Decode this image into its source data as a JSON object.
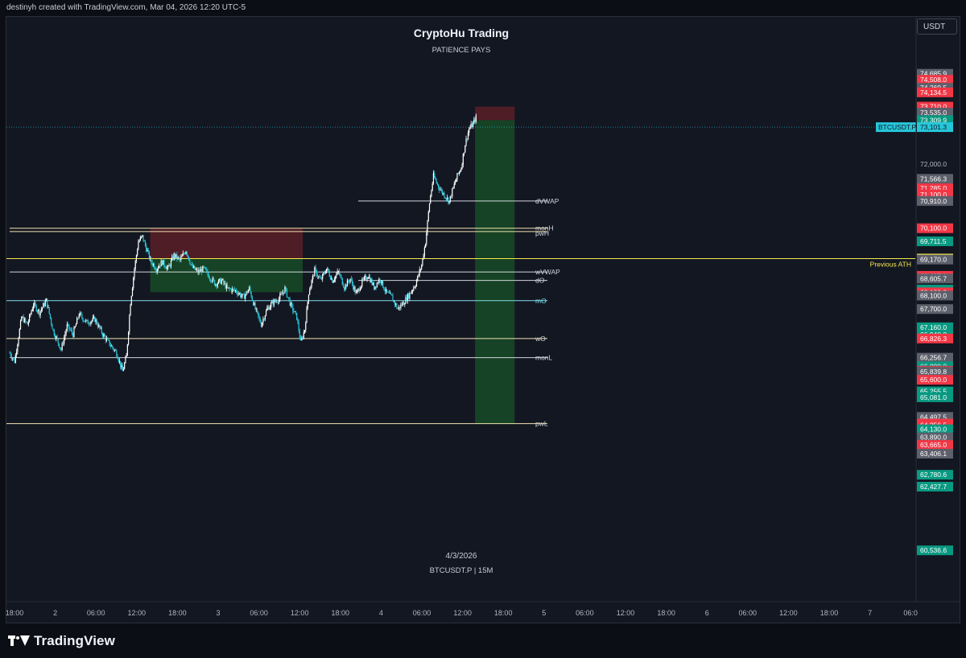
{
  "header": {
    "attribution": "destinyh created with TradingView.com, Mar 04, 2026 12:20 UTC-5"
  },
  "currency_button": "USDT",
  "footer": {
    "brand": "TradingView",
    "icon": "tradingview-logo-icon"
  },
  "chart_data": {
    "type": "candlestick",
    "symbol": "BTCUSDT.P",
    "interval": "15M",
    "title": "CryptoHu Trading",
    "subtitle": "PATIENCE PAYS",
    "watermark_date": "4/3/2026",
    "watermark_symbol": "BTCUSDT.P | 15M",
    "ylim": [
      59800,
      75300
    ],
    "x_ticks": [
      "18:00",
      "2",
      "06:00",
      "12:00",
      "18:00",
      "3",
      "06:00",
      "12:00",
      "18:00",
      "4",
      "06:00",
      "12:00",
      "18:00",
      "5",
      "06:00",
      "12:00",
      "18:00",
      "6",
      "06:00",
      "12:00",
      "18:00",
      "7",
      "06:0"
    ],
    "up_color": "#ffffff",
    "down_color": "#26c6da",
    "price_path": [
      {
        "t": 0,
        "p": 66400
      },
      {
        "t": 5,
        "p": 66150
      },
      {
        "t": 12,
        "p": 67450
      },
      {
        "t": 18,
        "p": 67250
      },
      {
        "t": 24,
        "p": 67850
      },
      {
        "t": 30,
        "p": 67600
      },
      {
        "t": 37,
        "p": 67950
      },
      {
        "t": 44,
        "p": 67050
      },
      {
        "t": 52,
        "p": 66500
      },
      {
        "t": 58,
        "p": 67200
      },
      {
        "t": 64,
        "p": 66950
      },
      {
        "t": 70,
        "p": 67550
      },
      {
        "t": 78,
        "p": 67300
      },
      {
        "t": 86,
        "p": 67400
      },
      {
        "t": 94,
        "p": 66950
      },
      {
        "t": 100,
        "p": 66700
      },
      {
        "t": 108,
        "p": 66400
      },
      {
        "t": 114,
        "p": 65850
      },
      {
        "t": 118,
        "p": 66300
      },
      {
        "t": 122,
        "p": 67900
      },
      {
        "t": 126,
        "p": 68900
      },
      {
        "t": 130,
        "p": 69700
      },
      {
        "t": 134,
        "p": 69850
      },
      {
        "t": 138,
        "p": 69500
      },
      {
        "t": 142,
        "p": 69150
      },
      {
        "t": 148,
        "p": 68900
      },
      {
        "t": 154,
        "p": 69100
      },
      {
        "t": 160,
        "p": 68900
      },
      {
        "t": 166,
        "p": 69300
      },
      {
        "t": 172,
        "p": 69150
      },
      {
        "t": 178,
        "p": 69450
      },
      {
        "t": 184,
        "p": 68950
      },
      {
        "t": 190,
        "p": 68800
      },
      {
        "t": 196,
        "p": 68900
      },
      {
        "t": 202,
        "p": 68650
      },
      {
        "t": 208,
        "p": 68450
      },
      {
        "t": 214,
        "p": 68550
      },
      {
        "t": 220,
        "p": 68300
      },
      {
        "t": 228,
        "p": 68250
      },
      {
        "t": 236,
        "p": 68050
      },
      {
        "t": 242,
        "p": 68300
      },
      {
        "t": 248,
        "p": 67700
      },
      {
        "t": 254,
        "p": 67250
      },
      {
        "t": 260,
        "p": 67700
      },
      {
        "t": 266,
        "p": 67900
      },
      {
        "t": 272,
        "p": 68000
      },
      {
        "t": 278,
        "p": 68300
      },
      {
        "t": 284,
        "p": 67800
      },
      {
        "t": 290,
        "p": 67450
      },
      {
        "t": 294,
        "p": 66700
      },
      {
        "t": 298,
        "p": 67100
      },
      {
        "t": 302,
        "p": 68200
      },
      {
        "t": 308,
        "p": 68850
      },
      {
        "t": 314,
        "p": 68550
      },
      {
        "t": 320,
        "p": 68900
      },
      {
        "t": 326,
        "p": 68550
      },
      {
        "t": 332,
        "p": 68800
      },
      {
        "t": 338,
        "p": 68350
      },
      {
        "t": 344,
        "p": 68600
      },
      {
        "t": 350,
        "p": 68150
      },
      {
        "t": 356,
        "p": 68500
      },
      {
        "t": 362,
        "p": 68700
      },
      {
        "t": 368,
        "p": 68350
      },
      {
        "t": 374,
        "p": 68600
      },
      {
        "t": 380,
        "p": 68200
      },
      {
        "t": 386,
        "p": 68050
      },
      {
        "t": 392,
        "p": 67700
      },
      {
        "t": 398,
        "p": 67900
      },
      {
        "t": 404,
        "p": 68150
      },
      {
        "t": 410,
        "p": 68450
      },
      {
        "t": 416,
        "p": 69000
      },
      {
        "t": 420,
        "p": 69700
      },
      {
        "t": 424,
        "p": 70850
      },
      {
        "t": 428,
        "p": 71650
      },
      {
        "t": 432,
        "p": 71400
      },
      {
        "t": 436,
        "p": 71200
      },
      {
        "t": 440,
        "p": 71050
      },
      {
        "t": 444,
        "p": 70900
      },
      {
        "t": 448,
        "p": 71300
      },
      {
        "t": 452,
        "p": 71650
      },
      {
        "t": 456,
        "p": 71900
      },
      {
        "t": 460,
        "p": 72600
      },
      {
        "t": 464,
        "p": 73050
      },
      {
        "t": 468,
        "p": 73200
      },
      {
        "t": 472,
        "p": 73450
      }
    ],
    "levels": [
      {
        "label": "dVWAP",
        "price": 70910,
        "start": 352,
        "color": "#d1d4dc"
      },
      {
        "label": "monH",
        "price": 70100,
        "start": 0,
        "color": "#f3e3b0"
      },
      {
        "label": "pwH",
        "price": 70000,
        "start": 0,
        "color": "#f3e3b0"
      },
      {
        "label": "",
        "price": 69198.7,
        "start": -40,
        "color": "#f7e84b"
      },
      {
        "label": "wVWAP",
        "price": 68800,
        "start": 0,
        "color": "#d1d4dc"
      },
      {
        "label": "dO",
        "price": 68550,
        "start": 352,
        "color": "#d1d4dc"
      },
      {
        "label": "mO",
        "price": 67950,
        "start": -40,
        "color": "#80deea"
      },
      {
        "label": "wO",
        "price": 66826,
        "start": -40,
        "color": "#f3e3b0"
      },
      {
        "label": "monL",
        "price": 66256.7,
        "start": 0,
        "color": "#d1d4dc"
      },
      {
        "label": "pwL",
        "price": 64300,
        "start": -40,
        "color": "#f3e3b0"
      }
    ],
    "prev_ath_label": "Previous ATH",
    "prev_ath_price": 69198.7,
    "positions": [
      {
        "t1": 142,
        "t2": 296,
        "entry": 69198.7,
        "stop": 70100,
        "target": 68200
      },
      {
        "t1": 470,
        "t2": 510,
        "entry": 73309.9,
        "stop": 73710,
        "target": 64300
      }
    ],
    "current_price": 73101.3,
    "current_label": "BTCUSDT.P",
    "axis_labels": [
      {
        "price": 74685.9,
        "color": "#5d606b"
      },
      {
        "price": 74508.0,
        "color": "#f23645"
      },
      {
        "price": 74269.5,
        "color": "#5d606b"
      },
      {
        "price": 74134.5,
        "color": "#f23645"
      },
      {
        "price": 73710.0,
        "color": "#f23645"
      },
      {
        "price": 73535.0,
        "color": "#5d606b"
      },
      {
        "price": 73309.9,
        "color": "#089981"
      },
      {
        "price": 72000.0,
        "color": "plain"
      },
      {
        "price": 71566.3,
        "color": "#5d606b"
      },
      {
        "price": 71285.0,
        "color": "#f23645"
      },
      {
        "price": 71100.0,
        "color": "#f23645"
      },
      {
        "price": 70910.0,
        "color": "#5d606b"
      },
      {
        "price": 70100.0,
        "color": "#f23645"
      },
      {
        "price": 69711.5,
        "color": "#089981"
      },
      {
        "price": 69198.7,
        "color": "#f7e84b"
      },
      {
        "price": 69170.0,
        "color": "#5d606b"
      },
      {
        "price": 68687.0,
        "color": "#f23645"
      },
      {
        "price": 68605.7,
        "color": "#5d606b"
      },
      {
        "price": 68280.0,
        "color": "#089981"
      },
      {
        "price": 68272.0,
        "color": "#089981"
      },
      {
        "price": 68196.9,
        "color": "#f23645"
      },
      {
        "price": 68189.0,
        "color": "#f23645"
      },
      {
        "price": 68100.0,
        "color": "#5d606b"
      },
      {
        "price": 67700.0,
        "color": "#5d606b"
      },
      {
        "price": 67160.0,
        "color": "#089981"
      },
      {
        "price": 66940.8,
        "color": "#089981"
      },
      {
        "price": 66826.3,
        "color": "#f23645"
      },
      {
        "price": 66256.7,
        "color": "#5d606b"
      },
      {
        "price": 66000.0,
        "color": "#089981"
      },
      {
        "price": 65876.0,
        "color": "#5d606b"
      },
      {
        "price": 65861.7,
        "color": "#f23645"
      },
      {
        "price": 65839.8,
        "color": "#5d606b"
      },
      {
        "price": 65600.0,
        "color": "#f23645"
      },
      {
        "price": 65255.5,
        "color": "#089981"
      },
      {
        "price": 65081.0,
        "color": "#089981"
      },
      {
        "price": 64497.5,
        "color": "#5d606b"
      },
      {
        "price": 64300.0,
        "color": "#f23645"
      },
      {
        "price": 64256.5,
        "color": "#f23645"
      },
      {
        "price": 64130.0,
        "color": "#089981"
      },
      {
        "price": 63890.0,
        "color": "#5d606b"
      },
      {
        "price": 63665.0,
        "color": "#f23645"
      },
      {
        "price": 63406.1,
        "color": "#5d606b"
      },
      {
        "price": 62780.6,
        "color": "#089981"
      },
      {
        "price": 62427.7,
        "color": "#089981"
      },
      {
        "price": 60536.6,
        "color": "#089981"
      }
    ]
  }
}
